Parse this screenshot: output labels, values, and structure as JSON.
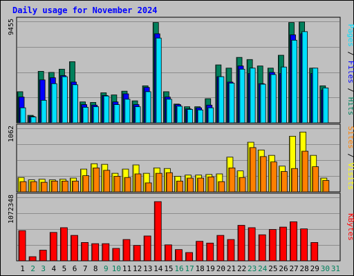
{
  "chart_data": {
    "type": "bar",
    "title": "Daily usage for November 2024",
    "categories": [
      "1",
      "2",
      "3",
      "4",
      "5",
      "6",
      "7",
      "8",
      "9",
      "10",
      "11",
      "12",
      "13",
      "14",
      "15",
      "16",
      "17",
      "18",
      "19",
      "20",
      "21",
      "22",
      "23",
      "24",
      "25",
      "26",
      "27",
      "28",
      "29",
      "30",
      "31"
    ],
    "weekend_days": [
      "2",
      "3",
      "9",
      "10",
      "16",
      "17",
      "23",
      "24",
      "30",
      "31"
    ],
    "colors": {
      "hits": "#00805c",
      "files": "#0000ff",
      "pages": "#00e0ff",
      "visits": "#ffff00",
      "sites": "#ff8000",
      "kbytes": "#ff0000",
      "weekday_label": "#000000",
      "weekend_label": "#00805c"
    },
    "panels": [
      {
        "id": "usage-top",
        "axis_max_label": "9455",
        "ymax": 9455,
        "series": [
          {
            "key": "hits",
            "values": [
              2900,
              700,
              4800,
              4700,
              5000,
              5700,
              1950,
              1900,
              2800,
              2600,
              2950,
              2050,
              3450,
              9350,
              2900,
              1750,
              1500,
              1500,
              2250,
              5400,
              5100,
              6100,
              5900,
              5300,
              5100,
              6300,
              9350,
              9400,
              5100,
              3450,
              0
            ]
          },
          {
            "key": "files",
            "values": [
              2400,
              600,
              4000,
              4200,
              4400,
              3800,
              1700,
              1650,
              2550,
              1950,
              2700,
              1700,
              3300,
              8300,
              2400,
              1700,
              1300,
              1400,
              1650,
              4300,
              3800,
              5300,
              4600,
              3650,
              4700,
              4600,
              8200,
              8300,
              4600,
              3050,
              0
            ]
          },
          {
            "key": "pages",
            "values": [
              1400,
              550,
              2100,
              3650,
              4300,
              3550,
              1450,
              1500,
              2500,
              1700,
              2200,
              1500,
              2900,
              7900,
              2200,
              1550,
              1250,
              1200,
              1400,
              4300,
              3700,
              5000,
              5100,
              3600,
              4500,
              5200,
              7700,
              8500,
              5100,
              3250,
              0
            ]
          }
        ]
      },
      {
        "id": "visits-sites",
        "axis_max_label": "1062",
        "ymax": 1062,
        "series": [
          {
            "key": "visits",
            "values": [
              240,
              200,
              210,
              200,
              210,
              230,
              380,
              470,
              460,
              310,
              380,
              450,
              310,
              400,
              390,
              260,
              280,
              280,
              290,
              300,
              580,
              350,
              830,
              700,
              610,
              430,
              930,
              1000,
              610,
              230,
              0
            ]
          },
          {
            "key": "sites",
            "values": [
              170,
              170,
              160,
              180,
              180,
              180,
              270,
              400,
              360,
              260,
              240,
              300,
              150,
              310,
              320,
              180,
              230,
              230,
              250,
              170,
              400,
              240,
              740,
              590,
              500,
              340,
              390,
              680,
              420,
              190,
              0
            ]
          }
        ]
      },
      {
        "id": "kbytes",
        "axis_max_label": "1072348",
        "ymax": 1072348,
        "series": [
          {
            "key": "kbytes",
            "values": [
              510000,
              70000,
              180000,
              480000,
              560000,
              430000,
              310000,
              290000,
              290000,
              210000,
              360000,
              260000,
              420000,
              1000000,
              270000,
              190000,
              140000,
              330000,
              300000,
              430000,
              360000,
              600000,
              560000,
              440000,
              530000,
              570000,
              660000,
              540000,
              310000,
              0,
              0
            ]
          }
        ]
      }
    ],
    "side_labels": {
      "top": [
        {
          "text": "Pages",
          "color": "#00e0ff"
        },
        {
          "text": " / ",
          "color": "#000000"
        },
        {
          "text": "Files",
          "color": "#0000ff"
        },
        {
          "text": " / ",
          "color": "#000000"
        },
        {
          "text": "Hits",
          "color": "#00805c"
        }
      ],
      "middle": [
        {
          "text": "Sites",
          "color": "#ff8000"
        },
        {
          "text": " / ",
          "color": "#000000"
        },
        {
          "text": "Visits",
          "color": "#ffff00"
        }
      ],
      "bottom": [
        {
          "text": "KBytes",
          "color": "#ff0000"
        }
      ]
    }
  }
}
